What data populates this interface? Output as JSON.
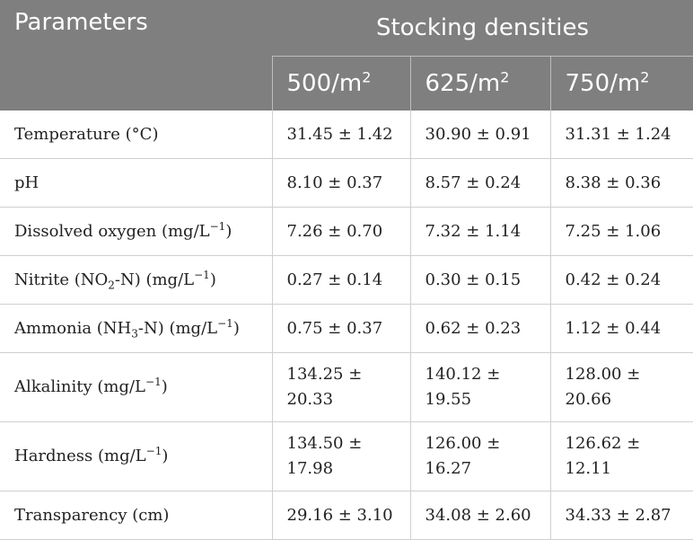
{
  "header": {
    "parameters": "Parameters",
    "group": "Stocking densities",
    "densities": [
      {
        "value": "500/m",
        "sup": "2"
      },
      {
        "value": "625/m",
        "sup": "2"
      },
      {
        "value": "750/m",
        "sup": "2"
      }
    ]
  },
  "rows": [
    {
      "param": "Temperature (°C)",
      "values": [
        "31.45 ± 1.42",
        "30.90 ± 0.91",
        "31.31 ± 1.24"
      ]
    },
    {
      "param": "pH",
      "values": [
        "8.10 ± 0.37",
        "8.57 ± 0.24",
        "8.38 ± 0.36"
      ]
    },
    {
      "param_parts": [
        "Dissolved oxygen (mg/L",
        "−1",
        ")"
      ],
      "values": [
        "7.26 ± 0.70",
        "7.32 ± 1.14",
        "7.25 ± 1.06"
      ]
    },
    {
      "param_parts": [
        "Nitrite (NO",
        "2",
        "-N) (mg/L",
        "−1",
        ")"
      ],
      "values": [
        "0.27 ± 0.14",
        "0.30 ± 0.15",
        "0.42 ± 0.24"
      ]
    },
    {
      "param_parts": [
        "Ammonia (NH",
        "3",
        "-N) (mg/L",
        "−1",
        ")"
      ],
      "values": [
        "0.75 ± 0.37",
        "0.62 ± 0.23",
        "1.12 ± 0.44"
      ]
    },
    {
      "param_parts": [
        "Alkalinity (mg/L",
        "−1",
        ")"
      ],
      "values": [
        "134.25 ± 20.33",
        "140.12 ± 19.55",
        "128.00 ± 20.66"
      ]
    },
    {
      "param_parts": [
        "Hardness (mg/L",
        "−1",
        ")"
      ],
      "values": [
        "134.50 ± 17.98",
        "126.00 ± 16.27",
        "126.62 ± 12.11"
      ]
    },
    {
      "param": "Transparency (cm)",
      "values": [
        "29.16 ± 3.10",
        "34.08 ± 2.60",
        "34.33 ± 2.87"
      ]
    }
  ]
}
